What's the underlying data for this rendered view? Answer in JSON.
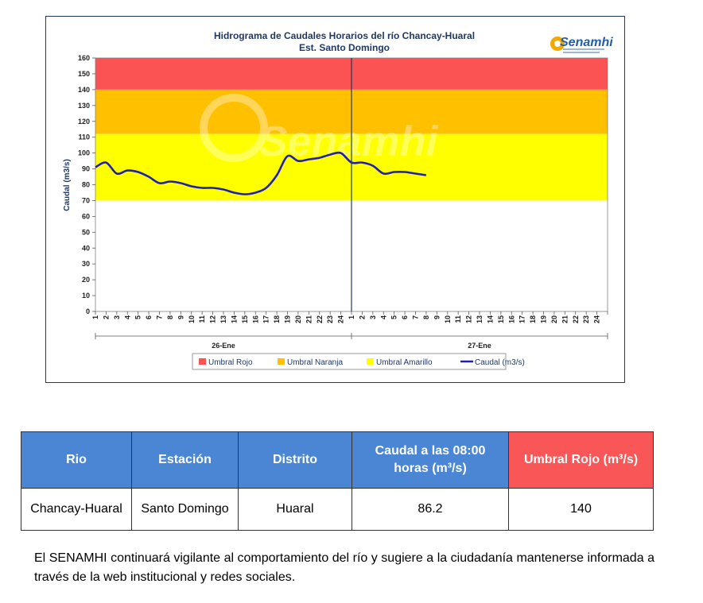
{
  "chart_data": {
    "type": "line",
    "title": "Hidrograma de Caudales Horarios del río Chancay-Huaral",
    "subtitle": "Est. Santo Domingo",
    "logo_text": "Senamhi",
    "watermark_text": "Senamhi",
    "ylabel": "Caudal  (m3/s)",
    "ylim": [
      0,
      160
    ],
    "yticks": [
      0,
      10,
      20,
      30,
      40,
      50,
      60,
      70,
      80,
      90,
      100,
      110,
      120,
      130,
      140,
      150,
      160
    ],
    "hour_ticks": [
      "1",
      "2",
      "3",
      "4",
      "5",
      "6",
      "7",
      "8",
      "9",
      "10",
      "11",
      "12",
      "13",
      "14",
      "15",
      "16",
      "17",
      "18",
      "19",
      "20",
      "21",
      "22",
      "23",
      "24",
      "1",
      "2",
      "3",
      "4",
      "5",
      "6",
      "7",
      "8",
      "9",
      "10",
      "11",
      "12",
      "13",
      "14",
      "15",
      "16",
      "17",
      "18",
      "19",
      "20",
      "21",
      "22",
      "23",
      "24"
    ],
    "day_labels": [
      "26-Ene",
      "27-Ene"
    ],
    "bands": [
      {
        "name": "Umbral Rojo",
        "from": 140,
        "to": 160,
        "color": "#fb5353"
      },
      {
        "name": "Umbral Naranja",
        "from": 112,
        "to": 140,
        "color": "#ffc000"
      },
      {
        "name": "Umbral Amarillo",
        "from": 70,
        "to": 112,
        "color": "#ffff00"
      }
    ],
    "series": [
      {
        "name": "Caudal (m3/s)",
        "color": "#1f1fb4",
        "x": [
          1,
          2,
          3,
          4,
          5,
          6,
          7,
          8,
          9,
          10,
          11,
          12,
          13,
          14,
          15,
          16,
          17,
          18,
          19,
          20,
          21,
          22,
          23,
          24,
          25,
          26,
          27,
          28,
          29,
          30,
          31,
          32
        ],
        "values": [
          91,
          94,
          87,
          89,
          88,
          85,
          81,
          82,
          81,
          79,
          78,
          78,
          77,
          75,
          74,
          75,
          78,
          86,
          98,
          95,
          96,
          97,
          99,
          100,
          94,
          94,
          92,
          87,
          88,
          88,
          87,
          86
        ]
      }
    ],
    "legend": [
      "Umbral Rojo",
      "Umbral Naranja",
      "Umbral Amarillo",
      "Caudal (m3/s)"
    ],
    "legend_position": "bottom",
    "grid": false
  },
  "table": {
    "headers": [
      "Rio",
      "Estación",
      "Distrito",
      "Caudal a las 08:00 horas (m³/s)",
      "Umbral Rojo (m³/s)"
    ],
    "row": [
      "Chancay-Huaral",
      "Santo Domingo",
      "Huaral",
      "86.2",
      "140"
    ]
  },
  "footer_text": "El SENAMHI continuará vigilante al comportamiento del río y sugiere a la ciudadanía mantenerse informada a través de la web institucional y redes sociales.",
  "colors": {
    "header_blue": "#4a86d4",
    "header_red": "#f95757",
    "title_navy": "#1f3864"
  }
}
